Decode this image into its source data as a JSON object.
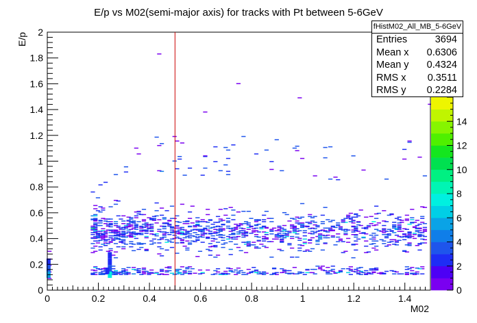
{
  "chart_data": {
    "type": "heatmap",
    "title": "E/p vs M02(semi-major axis) for tracks with Pt between 5-6GeV",
    "xlabel": "M02",
    "ylabel": "E/p",
    "xlim": [
      0,
      1.5
    ],
    "ylim": [
      0,
      2
    ],
    "x_ticks": [
      "0",
      "0.2",
      "0.4",
      "0.6",
      "0.8",
      "1",
      "1.2",
      "1.4"
    ],
    "y_ticks": [
      "0",
      "0.2",
      "0.4",
      "0.6",
      "0.8",
      "1",
      "1.2",
      "1.4",
      "1.6",
      "1.8",
      "2"
    ],
    "z_range": [
      0,
      16
    ],
    "z_ticks": [
      "0",
      "2",
      "4",
      "6",
      "8",
      "10",
      "12",
      "14"
    ],
    "palette": [
      "#7a00f0",
      "#4d00f5",
      "#1e2df5",
      "#1e55ec",
      "#0f7ee9",
      "#0aa3e6",
      "#00cfe6",
      "#00f0e0",
      "#00f5b4",
      "#00f082",
      "#00e050",
      "#14e61e",
      "#4ff000",
      "#86f500",
      "#c0f500",
      "#eef500"
    ],
    "cut_line_x": 0.5,
    "cut_line_color": "#cc0000",
    "hot_spots": [
      {
        "x": 0.245,
        "y": 0.12,
        "z": 7
      },
      {
        "x": 0.245,
        "y": 0.17,
        "z": 3
      },
      {
        "x": 0.245,
        "y": 0.22,
        "z": 2
      },
      {
        "x": 0.245,
        "y": 0.27,
        "z": 2
      },
      {
        "x": 0.235,
        "y": 0.15,
        "z": 2
      },
      {
        "x": 0.005,
        "y": 0.12,
        "z": 5
      },
      {
        "x": 0.005,
        "y": 0.17,
        "z": 3
      },
      {
        "x": 0.005,
        "y": 0.22,
        "z": 2
      }
    ]
  },
  "stats": {
    "title": "fHistM02_All_MB_5-6GeV",
    "rows": [
      {
        "label": "Entries",
        "value": "3694"
      },
      {
        "label": "Mean x",
        "value": "0.6306"
      },
      {
        "label": "Mean y",
        "value": "0.4324"
      },
      {
        "label": "RMS x",
        "value": "0.3511"
      },
      {
        "label": "RMS y",
        "value": "0.2284"
      }
    ]
  }
}
